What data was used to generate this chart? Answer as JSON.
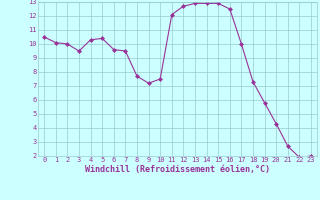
{
  "x": [
    0,
    1,
    2,
    3,
    4,
    5,
    6,
    7,
    8,
    9,
    10,
    11,
    12,
    13,
    14,
    15,
    16,
    17,
    18,
    19,
    20,
    21,
    22,
    23
  ],
  "y": [
    10.5,
    10.1,
    10.0,
    9.5,
    10.3,
    10.4,
    9.6,
    9.5,
    7.7,
    7.2,
    7.5,
    12.1,
    12.7,
    12.9,
    12.9,
    12.9,
    12.5,
    10.0,
    7.3,
    5.8,
    4.3,
    2.7,
    1.9,
    2.0
  ],
  "line_color": "#993399",
  "marker": "D",
  "marker_size": 2,
  "bg_color": "#ccffff",
  "grid_color": "#99cccc",
  "xlabel": "Windchill (Refroidissement éolien,°C)",
  "xlabel_color": "#993399",
  "tick_color": "#993399",
  "label_color": "#993399",
  "ylim": [
    2,
    13
  ],
  "xlim": [
    -0.5,
    23.5
  ],
  "yticks": [
    2,
    3,
    4,
    5,
    6,
    7,
    8,
    9,
    10,
    11,
    12,
    13
  ],
  "xticks": [
    0,
    1,
    2,
    3,
    4,
    5,
    6,
    7,
    8,
    9,
    10,
    11,
    12,
    13,
    14,
    15,
    16,
    17,
    18,
    19,
    20,
    21,
    22,
    23
  ],
  "tick_fontsize": 5,
  "xlabel_fontsize": 6,
  "linewidth": 0.8
}
